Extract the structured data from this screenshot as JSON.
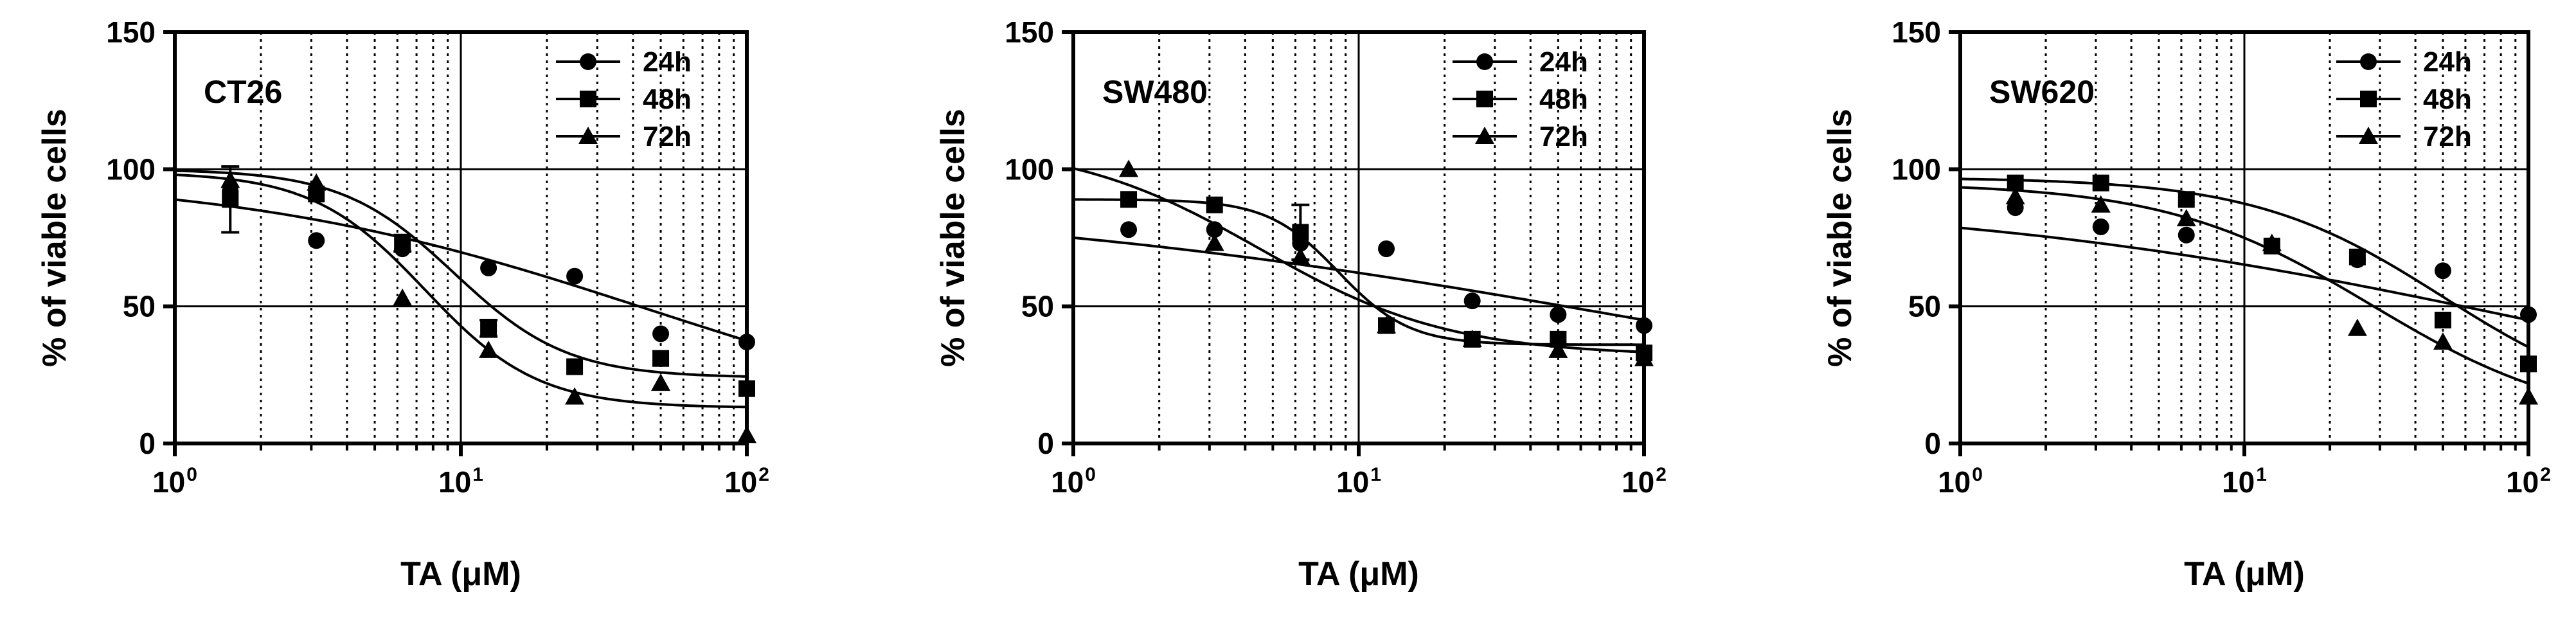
{
  "chart_data": [
    {
      "type": "scatter",
      "title": "CT26",
      "xlabel": "TA (μM)",
      "ylabel": "% of viable cells",
      "xscale": "log",
      "xlim": [
        1,
        100
      ],
      "ylim": [
        0,
        150
      ],
      "xticks": [
        {
          "base": "10",
          "exp": "0"
        },
        {
          "base": "10",
          "exp": "1"
        },
        {
          "base": "10",
          "exp": "2"
        }
      ],
      "yticks": [
        "0",
        "50",
        "100",
        "150"
      ],
      "hlines": [
        50,
        100
      ],
      "legend_position": "top-right",
      "series": [
        {
          "name": "24h",
          "marker": "circle",
          "x": [
            1.5625,
            3.125,
            6.25,
            12.5,
            25,
            50,
            100
          ],
          "y": [
            92,
            74,
            71,
            64,
            61,
            40,
            37
          ],
          "fit": {
            "top": 98,
            "bottom": 0,
            "ec50": 45,
            "hill": 0.6
          }
        },
        {
          "name": "48h",
          "marker": "square",
          "x": [
            1.5625,
            3.125,
            6.25,
            12.5,
            25,
            50,
            100
          ],
          "y": [
            89,
            91,
            73,
            42,
            28,
            31,
            20
          ],
          "error": [
            12,
            2,
            3,
            3,
            2,
            2,
            2
          ],
          "fit": {
            "top": 100,
            "bottom": 24,
            "ec50": 9.5,
            "hill": 2.2
          }
        },
        {
          "name": "72h",
          "marker": "triangle",
          "x": [
            1.5625,
            3.125,
            6.25,
            12.5,
            25,
            50,
            100
          ],
          "y": [
            96,
            95,
            53,
            34,
            17,
            22,
            3
          ],
          "fit": {
            "top": 99,
            "bottom": 13,
            "ec50": 7.5,
            "hill": 2.2
          }
        }
      ]
    },
    {
      "type": "scatter",
      "title": "SW480",
      "xlabel": "TA (μM)",
      "ylabel": "% of viable cells",
      "xscale": "log",
      "xlim": [
        1,
        100
      ],
      "ylim": [
        0,
        150
      ],
      "xticks": [
        {
          "base": "10",
          "exp": "0"
        },
        {
          "base": "10",
          "exp": "1"
        },
        {
          "base": "10",
          "exp": "2"
        }
      ],
      "yticks": [
        "0",
        "50",
        "100",
        "150"
      ],
      "hlines": [
        50,
        100
      ],
      "legend_position": "top-right",
      "series": [
        {
          "name": "24h",
          "marker": "circle",
          "x": [
            1.5625,
            3.125,
            6.25,
            12.5,
            25,
            50,
            100
          ],
          "y": [
            78,
            78,
            73,
            71,
            52,
            47,
            43
          ],
          "fit": {
            "top": 90,
            "bottom": 0,
            "ec50": 100,
            "hill": 0.35
          }
        },
        {
          "name": "48h",
          "marker": "square",
          "x": [
            1.5625,
            3.125,
            6.25,
            12.5,
            25,
            50,
            100
          ],
          "y": [
            89,
            87,
            77,
            43,
            38,
            38,
            33
          ],
          "error": [
            2,
            2,
            10,
            2,
            2,
            2,
            2
          ],
          "fit": {
            "top": 89,
            "bottom": 36,
            "ec50": 8.5,
            "hill": 3.5
          }
        },
        {
          "name": "72h",
          "marker": "triangle",
          "x": [
            1.5625,
            3.125,
            6.25,
            12.5,
            25,
            50,
            100
          ],
          "y": [
            100,
            73,
            68,
            43,
            38,
            34,
            31
          ],
          "fit": {
            "top": 110,
            "bottom": 32,
            "ec50": 4.5,
            "hill": 1.3
          }
        }
      ]
    },
    {
      "type": "scatter",
      "title": "SW620",
      "xlabel": "TA (μM)",
      "ylabel": "% of viable cells",
      "xscale": "log",
      "xlim": [
        1,
        100
      ],
      "ylim": [
        0,
        150
      ],
      "xticks": [
        {
          "base": "10",
          "exp": "0"
        },
        {
          "base": "10",
          "exp": "1"
        },
        {
          "base": "10",
          "exp": "2"
        }
      ],
      "yticks": [
        "0",
        "50",
        "100",
        "150"
      ],
      "hlines": [
        50,
        100
      ],
      "legend_position": "top-right",
      "series": [
        {
          "name": "24h",
          "marker": "circle",
          "x": [
            1.5625,
            3.125,
            6.25,
            12.5,
            25,
            50,
            100
          ],
          "y": [
            86,
            79,
            76,
            72,
            67,
            63,
            47
          ],
          "fit": {
            "top": 90,
            "bottom": 0,
            "ec50": 100,
            "hill": 0.42
          }
        },
        {
          "name": "48h",
          "marker": "square",
          "x": [
            1.5625,
            3.125,
            6.25,
            12.5,
            25,
            50,
            100
          ],
          "y": [
            95,
            95,
            89,
            72,
            68,
            45,
            29
          ],
          "fit": {
            "top": 97,
            "bottom": 10,
            "ec50": 50,
            "hill": 1.3
          }
        },
        {
          "name": "72h",
          "marker": "triangle",
          "x": [
            1.5625,
            3.125,
            6.25,
            12.5,
            25,
            50,
            100
          ],
          "y": [
            90,
            87,
            82,
            73,
            42,
            37,
            17
          ],
          "fit": {
            "top": 95,
            "bottom": 6,
            "ec50": 28,
            "hill": 1.2
          }
        }
      ]
    }
  ]
}
